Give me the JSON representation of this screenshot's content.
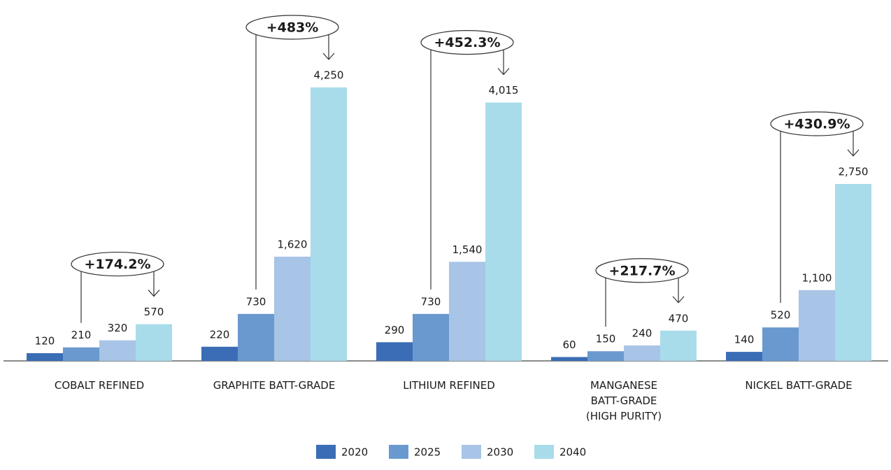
{
  "chart_data": {
    "type": "bar",
    "categories": [
      "COBALT REFINED",
      "GRAPHITE BATT-GRADE",
      "LITHIUM REFINED",
      "MANGANESE\nBATT-GRADE\n(HIGH PURITY)",
      "NICKEL BATT-GRADE"
    ],
    "series": [
      {
        "name": "2020",
        "color": "#3a6db5",
        "values": [
          120,
          220,
          290,
          60,
          140
        ],
        "value_labels": [
          "120",
          "220",
          "290",
          "60",
          "140"
        ]
      },
      {
        "name": "2025",
        "color": "#6a99cf",
        "values": [
          210,
          730,
          730,
          150,
          520
        ],
        "value_labels": [
          "210",
          "730",
          "730",
          "150",
          "520"
        ]
      },
      {
        "name": "2030",
        "color": "#a8c4e6",
        "values": [
          320,
          1620,
          1540,
          240,
          1100
        ],
        "value_labels": [
          "320",
          "1,620",
          "1,540",
          "240",
          "1,100"
        ]
      },
      {
        "name": "2040",
        "color": "#a8dcea",
        "values": [
          570,
          4250,
          4015,
          470,
          2750
        ],
        "value_labels": [
          "570",
          "4,250",
          "4,015",
          "470",
          "2,750"
        ]
      }
    ],
    "annotations": [
      "+174.2%",
      "+483%",
      "+452.3%",
      "+217.7%",
      "+430.9%"
    ]
  }
}
